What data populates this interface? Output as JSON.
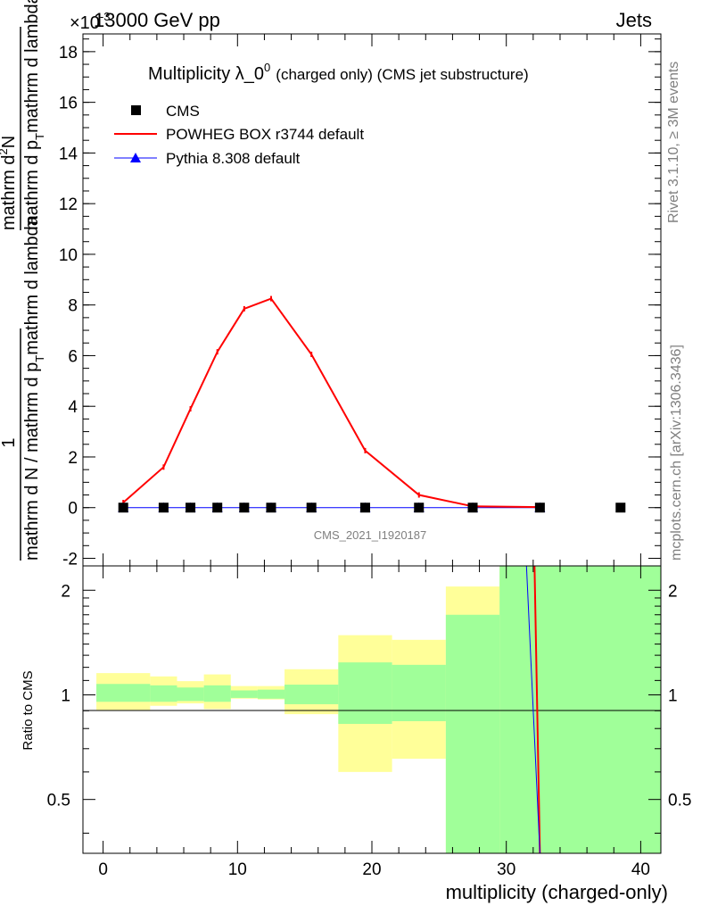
{
  "header": {
    "left": "13000 GeV pp",
    "right": "Jets",
    "exponent_label": "×10",
    "exponent_power": "-3"
  },
  "side_labels": {
    "rivet": "Rivet 3.1.10, ≥ 3M events",
    "mcplots": "mcplots.cern.ch [arXiv:1306.3436]"
  },
  "chart_data": [
    {
      "type": "line",
      "title_main": "Multiplicity λ_0",
      "title_sup": "0",
      "title_tail": "(charged only) (CMS jet substructure)",
      "watermark": "CMS_2021_I1920187",
      "ylabel_top": "1",
      "ylabel_bottom": "mathrm d N / mathrm d p",
      "ylabel_bottom_sub": "T",
      "ylabel_bottom_tail": "mathrm d lambda",
      "ylabel_num": "mathrm d",
      "ylabel_num_sup": "2",
      "ylabel_num_tail": "N",
      "ylabel_den": "mathrm d p",
      "ylabel_den_sub": "T",
      "ylabel_den_tail": "mathrm d lambda",
      "ylim": [
        -2.3,
        18.7
      ],
      "yscale_factor": "1e-3",
      "yticks": [
        -2,
        0,
        2,
        4,
        6,
        8,
        10,
        12,
        14,
        16,
        18
      ],
      "xlim": [
        -1.5,
        41.5
      ],
      "legend_position": "top-left",
      "series": [
        {
          "name": "CMS",
          "marker": "square",
          "color": "#000000",
          "x": [
            1.5,
            4.5,
            6.5,
            8.5,
            10.5,
            12.5,
            15.5,
            19.5,
            23.5,
            27.5,
            32.5,
            38.5
          ],
          "values": [
            0,
            0,
            0,
            0,
            0,
            0,
            0,
            0,
            0,
            0,
            0,
            0
          ]
        },
        {
          "name": "POWHEG BOX r3744 default",
          "marker": "line",
          "color": "#ff0000",
          "x": [
            1.5,
            4.5,
            6.5,
            8.5,
            10.5,
            12.5,
            15.5,
            19.5,
            23.5,
            27.5,
            32.5
          ],
          "values": [
            0.2,
            1.6,
            3.9,
            6.15,
            7.85,
            8.25,
            6.05,
            2.25,
            0.5,
            0.05,
            0.02
          ]
        },
        {
          "name": "Pythia 8.308 default",
          "marker": "triangle",
          "color": "#0000ff",
          "x": [
            1.5,
            4.5,
            6.5,
            8.5,
            10.5,
            12.5,
            15.5,
            19.5,
            23.5,
            27.5,
            32.5
          ],
          "values": [
            0,
            0,
            0,
            0,
            0,
            0,
            0,
            0,
            0,
            0,
            0
          ]
        }
      ]
    },
    {
      "type": "area",
      "ylabel": "Ratio to CMS",
      "xlabel": "multiplicity (charged-only)",
      "yscale": "log",
      "ylim": [
        0.35,
        2.35
      ],
      "yticks": [
        0.5,
        1,
        2
      ],
      "ytick_labels": [
        "0.5",
        "1",
        "2"
      ],
      "xlim": [
        -1.5,
        41.5
      ],
      "xticks": [
        0,
        10,
        20,
        30,
        40
      ],
      "xtick_labels": [
        "0",
        "10",
        "20",
        "30",
        "40"
      ],
      "bins": [
        {
          "lo": -0.5,
          "hi": 3.5,
          "stat": [
            0.955,
            1.075
          ],
          "total": [
            0.905,
            1.155
          ]
        },
        {
          "lo": 3.5,
          "hi": 5.5,
          "stat": [
            0.955,
            1.065
          ],
          "total": [
            0.93,
            1.13
          ]
        },
        {
          "lo": 5.5,
          "hi": 7.5,
          "stat": [
            0.96,
            1.05
          ],
          "total": [
            0.945,
            1.095
          ]
        },
        {
          "lo": 7.5,
          "hi": 9.5,
          "stat": [
            0.955,
            1.065
          ],
          "total": [
            0.91,
            1.145
          ]
        },
        {
          "lo": 9.5,
          "hi": 11.5,
          "stat": [
            0.98,
            1.03
          ],
          "total": [
            0.975,
            1.06
          ]
        },
        {
          "lo": 11.5,
          "hi": 13.5,
          "stat": [
            0.975,
            1.035
          ],
          "total": [
            0.97,
            1.06
          ]
        },
        {
          "lo": 13.5,
          "hi": 17.5,
          "stat": [
            0.94,
            1.07
          ],
          "total": [
            0.88,
            1.185
          ]
        },
        {
          "lo": 17.5,
          "hi": 21.5,
          "stat": [
            0.825,
            1.24
          ],
          "total": [
            0.6,
            1.485
          ]
        },
        {
          "lo": 21.5,
          "hi": 25.5,
          "stat": [
            0.84,
            1.22
          ],
          "total": [
            0.655,
            1.44
          ]
        },
        {
          "lo": 25.5,
          "hi": 29.5,
          "stat": [
            0.35,
            1.7
          ],
          "total": [
            0.35,
            2.05
          ]
        },
        {
          "lo": 29.5,
          "hi": 41.5,
          "stat": [
            0.35,
            2.35
          ],
          "total": [
            0.35,
            2.35
          ]
        }
      ],
      "series": [
        {
          "name": "POWHEG BOX r3744 default",
          "color": "#ff0000",
          "x": [
            32.1,
            32.5
          ],
          "values": [
            2.35,
            0.35
          ]
        },
        {
          "name": "Pythia 8.308 default",
          "color": "#0000ff",
          "x": [
            31.5,
            32.5
          ],
          "values": [
            2.35,
            0.35
          ]
        }
      ],
      "colors": {
        "stat_band": "#a0ff99",
        "total_band": "#ffff99"
      }
    }
  ]
}
